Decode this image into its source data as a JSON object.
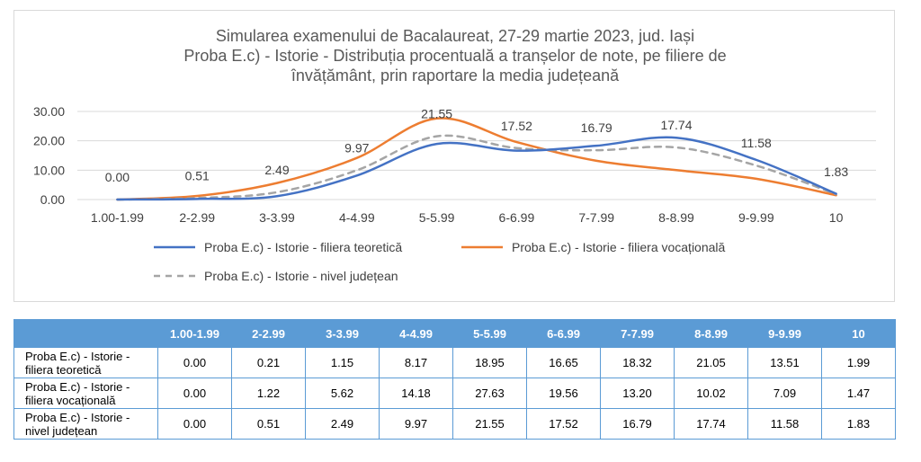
{
  "chart_data": {
    "type": "line",
    "title": [
      "Simularea examenului de Bacalaureat, 27-29 martie 2023, jud. Iași",
      "Proba E.c) - Istorie - Distribuția procentuală a tranșelor de note, pe filiere de",
      "învățământ, prin raportare la media județeană"
    ],
    "categories": [
      "1.00-1.99",
      "2-2.99",
      "3-3.99",
      "4-4.99",
      "5-5.99",
      "6-6.99",
      "7-7.99",
      "8-8.99",
      "9-9.99",
      "10"
    ],
    "yticks": [
      "0.00",
      "10.00",
      "20.00",
      "30.00"
    ],
    "ylim": [
      0,
      30
    ],
    "grid": true,
    "legend_position": "bottom",
    "series": [
      {
        "name": "Proba E.c) - Istorie - filiera teoretică",
        "color": "#4472c4",
        "dash": false,
        "values": [
          0.0,
          0.21,
          1.15,
          8.17,
          18.95,
          16.65,
          18.32,
          21.05,
          13.51,
          1.99
        ],
        "labels": false
      },
      {
        "name": "Proba E.c) - Istorie - filiera vocațională",
        "color": "#ed7d31",
        "dash": false,
        "values": [
          0.0,
          1.22,
          5.62,
          14.18,
          27.63,
          19.56,
          13.2,
          10.02,
          7.09,
          1.47
        ],
        "labels": false
      },
      {
        "name": "Proba E.c) - Istorie - nivel județean",
        "color": "#a5a5a5",
        "dash": true,
        "values": [
          0.0,
          0.51,
          2.49,
          9.97,
          21.55,
          17.52,
          16.79,
          17.74,
          11.58,
          1.83
        ],
        "labels": true,
        "label_text": [
          "0.00",
          "0.51",
          "2.49",
          "9.97",
          "21.55",
          "17.52",
          "16.79",
          "17.74",
          "11.58",
          "1.83"
        ]
      }
    ]
  },
  "table": {
    "headers": [
      "",
      "1.00-1.99",
      "2-2.99",
      "3-3.99",
      "4-4.99",
      "5-5.99",
      "6-6.99",
      "7-7.99",
      "8-8.99",
      "9-9.99",
      "10"
    ],
    "rows": [
      {
        "label": [
          "Proba E.c) - Istorie -",
          "filiera teoretică"
        ],
        "cells": [
          "0.00",
          "0.21",
          "1.15",
          "8.17",
          "18.95",
          "16.65",
          "18.32",
          "21.05",
          "13.51",
          "1.99"
        ]
      },
      {
        "label": [
          "Proba E.c) - Istorie -",
          "filiera vocațională"
        ],
        "cells": [
          "0.00",
          "1.22",
          "5.62",
          "14.18",
          "27.63",
          "19.56",
          "13.20",
          "10.02",
          "7.09",
          "1.47"
        ]
      },
      {
        "label": [
          "Proba E.c) - Istorie -",
          "nivel județean"
        ],
        "cells": [
          "0.00",
          "0.51",
          "2.49",
          "9.97",
          "21.55",
          "17.52",
          "16.79",
          "17.74",
          "11.58",
          "1.83"
        ]
      }
    ]
  }
}
